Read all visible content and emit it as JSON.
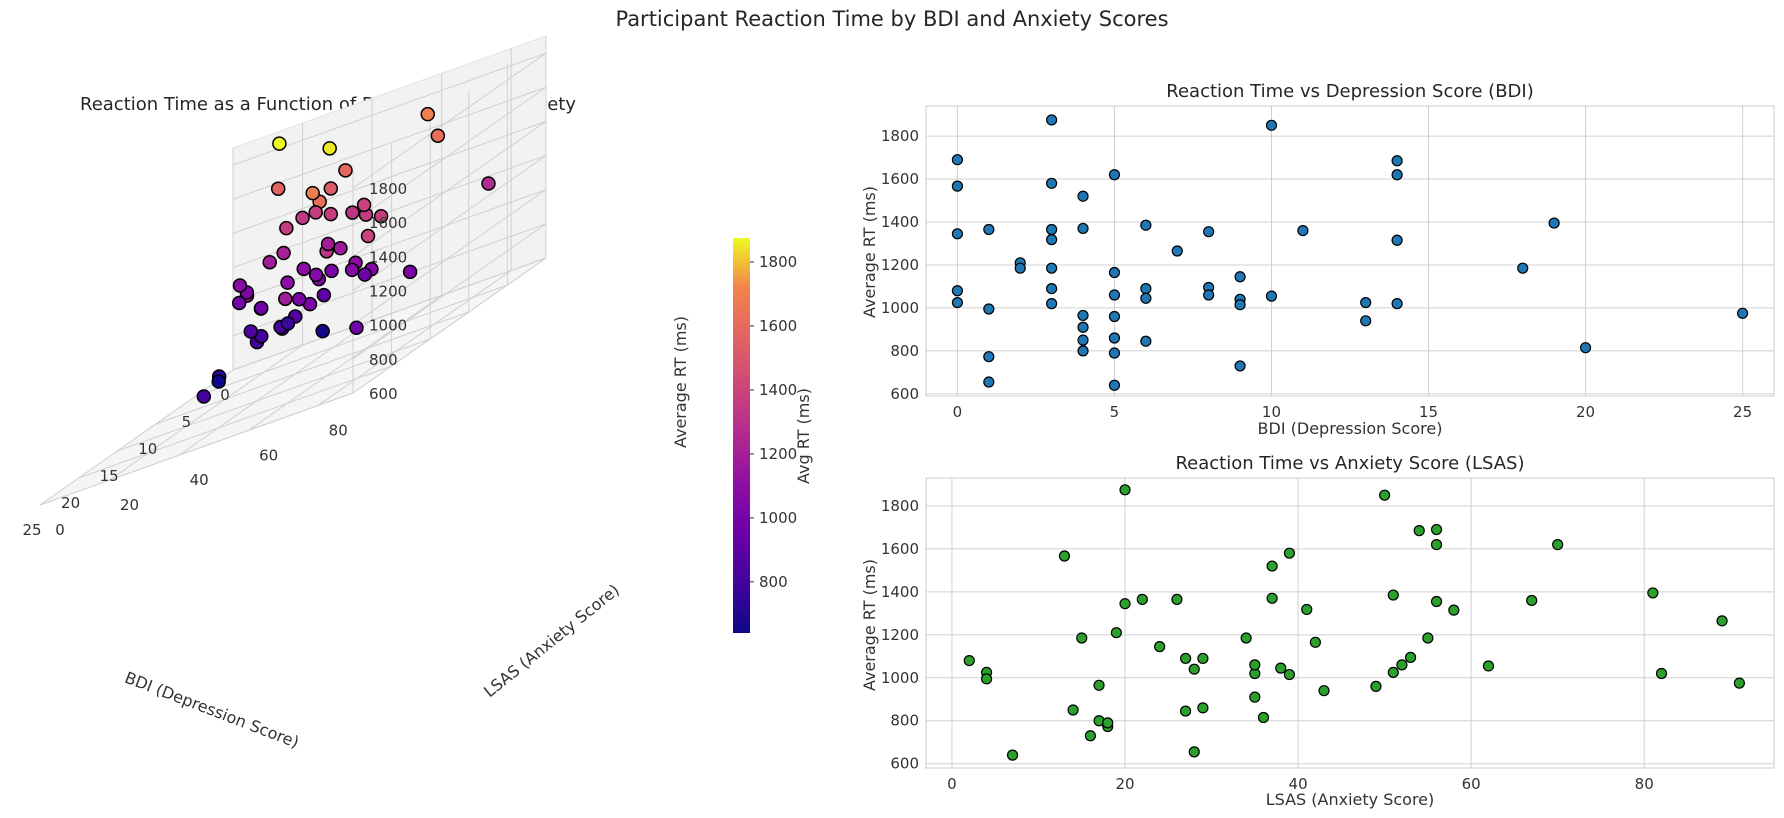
{
  "title": "Participant Reaction Time by BDI and Anxiety Scores",
  "chart_data": [
    {
      "type": "scatter3d",
      "title": "Reaction Time as a Function of Depression and Anxiety",
      "xlabel": "BDI (Depression Score)",
      "ylabel": "LSAS (Anxiety Score)",
      "zlabel": "Average RT (ms)",
      "xlim": [
        0,
        25
      ],
      "ylim": [
        0,
        90
      ],
      "zlim": [
        600,
        1900
      ],
      "xticks": [
        0,
        5,
        10,
        15,
        20,
        25
      ],
      "yticks": [
        0,
        20,
        40,
        60,
        80
      ],
      "zticks": [
        600,
        800,
        1000,
        1200,
        1400,
        1600,
        1800
      ],
      "colorbar": {
        "label": "Avg RT (ms)",
        "ticks": [
          800,
          1000,
          1200,
          1400,
          1600,
          1800
        ],
        "range": [
          640,
          1875
        ],
        "colormap": "plasma"
      },
      "grid": true,
      "points": [
        {
          "bdi": 0,
          "lsas": 56,
          "rt": 1690
        },
        {
          "bdi": 0,
          "lsas": 13,
          "rt": 1567
        },
        {
          "bdi": 0,
          "lsas": 20,
          "rt": 1345
        },
        {
          "bdi": 0,
          "lsas": 2,
          "rt": 1080
        },
        {
          "bdi": 0,
          "lsas": 4,
          "rt": 1025
        },
        {
          "bdi": 1,
          "lsas": 26,
          "rt": 1365
        },
        {
          "bdi": 1,
          "lsas": 4,
          "rt": 995
        },
        {
          "bdi": 1,
          "lsas": 18,
          "rt": 773
        },
        {
          "bdi": 1,
          "lsas": 28,
          "rt": 655
        },
        {
          "bdi": 2,
          "lsas": 19,
          "rt": 1210
        },
        {
          "bdi": 2,
          "lsas": 15,
          "rt": 1185
        },
        {
          "bdi": 3,
          "lsas": 20,
          "rt": 1875
        },
        {
          "bdi": 3,
          "lsas": 39,
          "rt": 1580
        },
        {
          "bdi": 3,
          "lsas": 22,
          "rt": 1365
        },
        {
          "bdi": 3,
          "lsas": 41,
          "rt": 1318
        },
        {
          "bdi": 3,
          "lsas": 34,
          "rt": 1185
        },
        {
          "bdi": 3,
          "lsas": 27,
          "rt": 1090
        },
        {
          "bdi": 3,
          "lsas": 35,
          "rt": 1020
        },
        {
          "bdi": 4,
          "lsas": 37,
          "rt": 1520
        },
        {
          "bdi": 4,
          "lsas": 37,
          "rt": 1370
        },
        {
          "bdi": 4,
          "lsas": 17,
          "rt": 965
        },
        {
          "bdi": 4,
          "lsas": 35,
          "rt": 910
        },
        {
          "bdi": 4,
          "lsas": 14,
          "rt": 850
        },
        {
          "bdi": 4,
          "lsas": 17,
          "rt": 800
        },
        {
          "bdi": 5,
          "lsas": 70,
          "rt": 1620
        },
        {
          "bdi": 5,
          "lsas": 42,
          "rt": 1165
        },
        {
          "bdi": 5,
          "lsas": 35,
          "rt": 1060
        },
        {
          "bdi": 5,
          "lsas": 49,
          "rt": 960
        },
        {
          "bdi": 5,
          "lsas": 29,
          "rt": 860
        },
        {
          "bdi": 5,
          "lsas": 18,
          "rt": 790
        },
        {
          "bdi": 5,
          "lsas": 7,
          "rt": 640
        },
        {
          "bdi": 6,
          "lsas": 51,
          "rt": 1385
        },
        {
          "bdi": 6,
          "lsas": 29,
          "rt": 1090
        },
        {
          "bdi": 6,
          "lsas": 38,
          "rt": 1045
        },
        {
          "bdi": 6,
          "lsas": 27,
          "rt": 845
        },
        {
          "bdi": 7,
          "lsas": 89,
          "rt": 1265
        },
        {
          "bdi": 8,
          "lsas": 56,
          "rt": 1355
        },
        {
          "bdi": 8,
          "lsas": 53,
          "rt": 1095
        },
        {
          "bdi": 8,
          "lsas": 52,
          "rt": 1060
        },
        {
          "bdi": 9,
          "lsas": 24,
          "rt": 1145
        },
        {
          "bdi": 9,
          "lsas": 28,
          "rt": 1040
        },
        {
          "bdi": 9,
          "lsas": 39,
          "rt": 1015
        },
        {
          "bdi": 9,
          "lsas": 16,
          "rt": 730
        },
        {
          "bdi": 10,
          "lsas": 50,
          "rt": 1850
        },
        {
          "bdi": 10,
          "lsas": 62,
          "rt": 1055
        },
        {
          "bdi": 11,
          "lsas": 67,
          "rt": 1360
        },
        {
          "bdi": 13,
          "lsas": 51,
          "rt": 1025
        },
        {
          "bdi": 13,
          "lsas": 43,
          "rt": 940
        },
        {
          "bdi": 14,
          "lsas": 54,
          "rt": 1685
        },
        {
          "bdi": 14,
          "lsas": 56,
          "rt": 1620
        },
        {
          "bdi": 14,
          "lsas": 58,
          "rt": 1315
        },
        {
          "bdi": 14,
          "lsas": 82,
          "rt": 1020
        },
        {
          "bdi": 18,
          "lsas": 55,
          "rt": 1185
        },
        {
          "bdi": 19,
          "lsas": 81,
          "rt": 1395
        },
        {
          "bdi": 20,
          "lsas": 36,
          "rt": 815
        },
        {
          "bdi": 25,
          "lsas": 91,
          "rt": 975
        }
      ]
    },
    {
      "type": "scatter",
      "title": "Reaction Time vs Depression Score (BDI)",
      "xlabel": "BDI (Depression Score)",
      "ylabel": "Average RT (ms)",
      "xlim": [
        -1,
        26
      ],
      "ylim": [
        590,
        1940
      ],
      "xticks": [
        0,
        5,
        10,
        15,
        20,
        25
      ],
      "yticks": [
        600,
        800,
        1000,
        1200,
        1400,
        1600,
        1800
      ],
      "marker_color": "#1f77b4",
      "grid": true,
      "x": [
        0,
        0,
        0,
        0,
        0,
        1,
        1,
        1,
        1,
        2,
        2,
        3,
        3,
        3,
        3,
        3,
        3,
        3,
        4,
        4,
        4,
        4,
        4,
        4,
        5,
        5,
        5,
        5,
        5,
        5,
        5,
        6,
        6,
        6,
        6,
        7,
        8,
        8,
        8,
        9,
        9,
        9,
        9,
        10,
        10,
        11,
        13,
        13,
        14,
        14,
        14,
        14,
        18,
        19,
        20,
        25
      ],
      "y": [
        1690,
        1567,
        1345,
        1080,
        1025,
        1365,
        995,
        773,
        655,
        1210,
        1185,
        1875,
        1580,
        1365,
        1318,
        1185,
        1090,
        1020,
        1520,
        1370,
        965,
        910,
        850,
        800,
        1620,
        1165,
        1060,
        960,
        860,
        790,
        640,
        1385,
        1090,
        1045,
        845,
        1265,
        1355,
        1095,
        1060,
        1145,
        1040,
        1015,
        730,
        1850,
        1055,
        1360,
        1025,
        940,
        1685,
        1620,
        1315,
        1020,
        1185,
        1395,
        815,
        975
      ]
    },
    {
      "type": "scatter",
      "title": "Reaction Time vs Anxiety Score (LSAS)",
      "xlabel": "LSAS (Anxiety Score)",
      "ylabel": "Average RT (ms)",
      "xlim": [
        -3,
        95
      ],
      "ylim": [
        580,
        1930
      ],
      "xticks": [
        0,
        20,
        40,
        60,
        80
      ],
      "yticks": [
        600,
        800,
        1000,
        1200,
        1400,
        1600,
        1800
      ],
      "marker_color": "#2ca02c",
      "grid": true,
      "x": [
        56,
        13,
        20,
        2,
        4,
        26,
        4,
        18,
        28,
        19,
        15,
        20,
        39,
        22,
        41,
        34,
        27,
        35,
        37,
        37,
        17,
        35,
        14,
        17,
        70,
        42,
        35,
        49,
        29,
        18,
        7,
        51,
        29,
        38,
        27,
        89,
        56,
        53,
        52,
        24,
        28,
        39,
        16,
        50,
        62,
        67,
        51,
        43,
        54,
        56,
        58,
        82,
        55,
        81,
        36,
        91
      ],
      "y": [
        1690,
        1567,
        1345,
        1080,
        1025,
        1365,
        995,
        773,
        655,
        1210,
        1185,
        1875,
        1580,
        1365,
        1318,
        1185,
        1090,
        1020,
        1520,
        1370,
        965,
        910,
        850,
        800,
        1620,
        1165,
        1060,
        960,
        860,
        790,
        640,
        1385,
        1090,
        1045,
        845,
        1265,
        1355,
        1095,
        1060,
        1145,
        1040,
        1015,
        730,
        1850,
        1055,
        1360,
        1025,
        940,
        1685,
        1620,
        1315,
        1020,
        1185,
        1395,
        815,
        975
      ]
    }
  ]
}
